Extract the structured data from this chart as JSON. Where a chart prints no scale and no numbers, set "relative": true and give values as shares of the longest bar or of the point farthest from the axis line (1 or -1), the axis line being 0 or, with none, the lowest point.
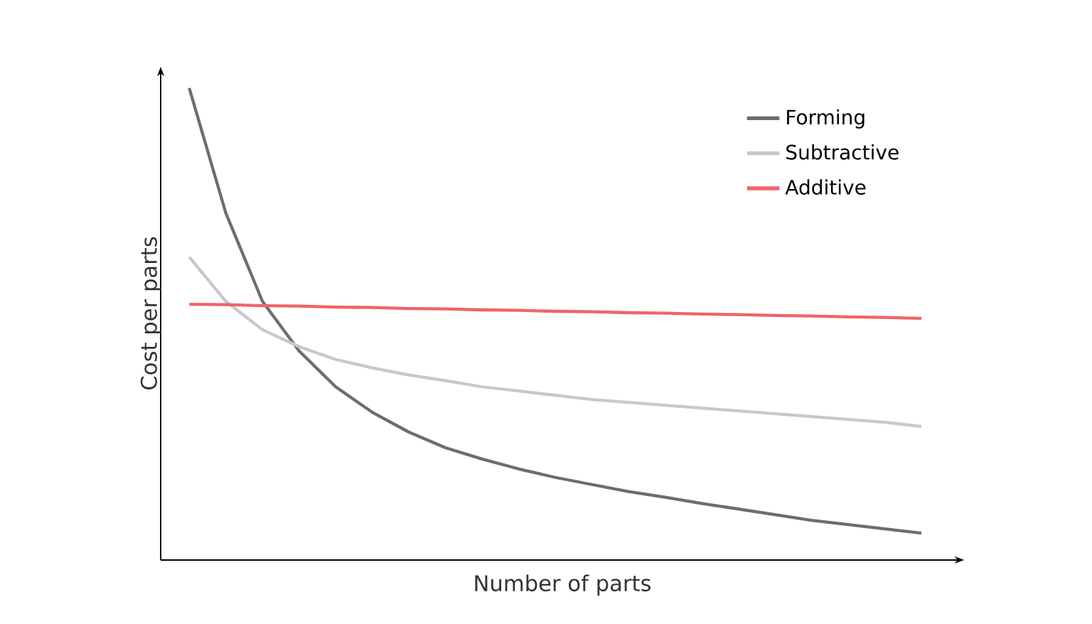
{
  "chart_data": {
    "type": "line",
    "xlabel": "Number of parts",
    "ylabel": "Cost per parts",
    "relative": true,
    "legend": "top right",
    "marker": "none",
    "line_style": "solid",
    "categories": [
      null,
      null,
      null,
      null,
      null,
      null,
      null,
      null,
      null,
      null,
      null,
      null,
      null,
      null,
      null,
      null,
      null,
      null,
      null,
      null,
      null
    ],
    "series": [
      {
        "name": "Forming",
        "color": "#6d6d6d",
        "values": [
          1.0,
          0.735,
          0.548,
          0.443,
          0.367,
          0.313,
          0.271,
          0.238,
          0.214,
          0.193,
          0.175,
          0.16,
          0.145,
          0.133,
          0.12,
          0.108,
          0.096,
          0.084,
          0.075,
          0.066,
          0.057
        ]
      },
      {
        "name": "Subtractive",
        "color": "#c8c8c8",
        "values": [
          0.642,
          0.548,
          0.488,
          0.452,
          0.425,
          0.407,
          0.392,
          0.38,
          0.367,
          0.358,
          0.349,
          0.34,
          0.334,
          0.328,
          0.322,
          0.316,
          0.31,
          0.304,
          0.298,
          0.292,
          0.283
        ]
      },
      {
        "name": "Additive",
        "color": "#f0646a",
        "values": [
          0.542,
          0.541,
          0.539,
          0.538,
          0.536,
          0.535,
          0.533,
          0.532,
          0.53,
          0.529,
          0.527,
          0.526,
          0.524,
          0.523,
          0.521,
          0.52,
          0.518,
          0.517,
          0.515,
          0.514,
          0.512
        ]
      }
    ]
  }
}
